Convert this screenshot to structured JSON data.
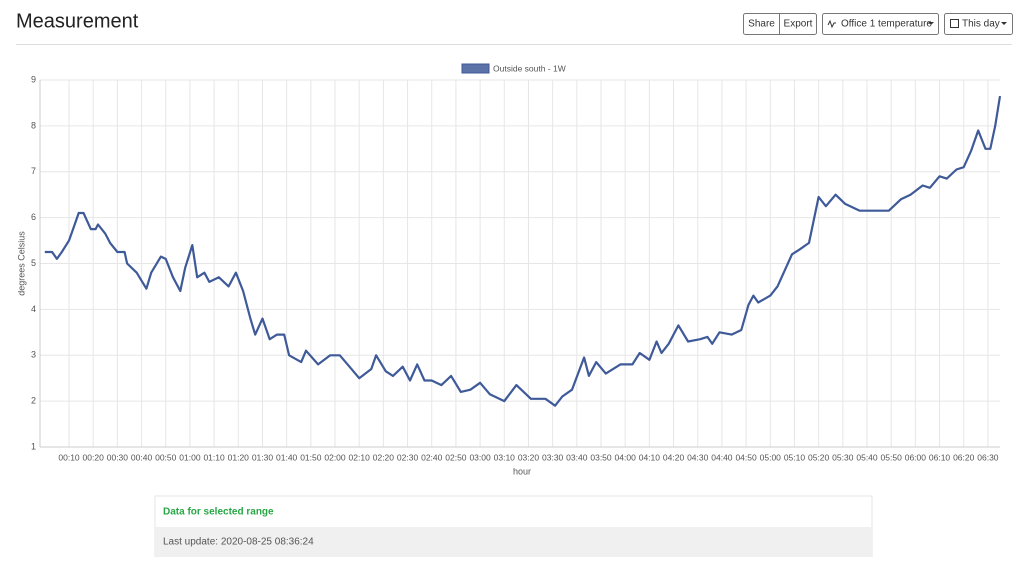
{
  "header": {
    "title": "Measurement",
    "buttons": [
      "Share",
      "Export",
      "Office 1 temperature",
      "This day"
    ]
  },
  "chart_data": {
    "type": "line",
    "legend": "top",
    "grid": true,
    "xlabel": "hour",
    "ylabel": "degrees Celsius",
    "ylim": [
      1,
      9
    ],
    "yticks": [
      1,
      2,
      3,
      4,
      5,
      6,
      7,
      8,
      9
    ],
    "xlim": [
      -2,
      395
    ],
    "xticks": [
      {
        "value": 10,
        "label": "00:10"
      },
      {
        "value": 20,
        "label": "00:20"
      },
      {
        "value": 30,
        "label": "00:30"
      },
      {
        "value": 40,
        "label": "00:40"
      },
      {
        "value": 50,
        "label": "00:50"
      },
      {
        "value": 60,
        "label": "01:00"
      },
      {
        "value": 70,
        "label": "01:10"
      },
      {
        "value": 80,
        "label": "01:20"
      },
      {
        "value": 90,
        "label": "01:30"
      },
      {
        "value": 100,
        "label": "01:40"
      },
      {
        "value": 110,
        "label": "01:50"
      },
      {
        "value": 120,
        "label": "02:00"
      },
      {
        "value": 130,
        "label": "02:10"
      },
      {
        "value": 140,
        "label": "02:20"
      },
      {
        "value": 150,
        "label": "02:30"
      },
      {
        "value": 160,
        "label": "02:40"
      },
      {
        "value": 170,
        "label": "02:50"
      },
      {
        "value": 180,
        "label": "03:00"
      },
      {
        "value": 190,
        "label": "03:10"
      },
      {
        "value": 200,
        "label": "03:20"
      },
      {
        "value": 210,
        "label": "03:30"
      },
      {
        "value": 220,
        "label": "03:40"
      },
      {
        "value": 230,
        "label": "03:50"
      },
      {
        "value": 240,
        "label": "04:00"
      },
      {
        "value": 250,
        "label": "04:10"
      },
      {
        "value": 260,
        "label": "04:20"
      },
      {
        "value": 270,
        "label": "04:30"
      },
      {
        "value": 280,
        "label": "04:40"
      },
      {
        "value": 290,
        "label": "04:50"
      },
      {
        "value": 300,
        "label": "05:00"
      },
      {
        "value": 310,
        "label": "05:10"
      },
      {
        "value": 320,
        "label": "05:20"
      },
      {
        "value": 330,
        "label": "05:30"
      },
      {
        "value": 340,
        "label": "05:40"
      },
      {
        "value": 350,
        "label": "05:50"
      },
      {
        "value": 360,
        "label": "06:00"
      },
      {
        "value": 370,
        "label": "06:10"
      },
      {
        "value": 380,
        "label": "06:20"
      },
      {
        "value": 390,
        "label": "06:30"
      }
    ],
    "x": [
      0,
      3,
      5,
      7,
      10,
      12,
      14,
      16,
      19,
      21,
      22,
      25,
      27,
      30,
      33,
      34,
      38,
      42,
      44,
      48,
      50,
      53,
      56,
      58,
      61,
      63,
      66,
      68,
      72,
      76,
      79,
      82,
      85,
      87,
      90,
      93,
      96,
      99,
      101,
      106,
      108,
      113,
      118,
      122,
      126,
      130,
      135,
      137,
      141,
      144,
      148,
      151,
      154,
      157,
      160,
      164,
      168,
      172,
      176,
      180,
      184,
      190,
      195,
      201,
      207,
      211,
      214,
      218,
      223,
      225,
      228,
      232,
      238,
      243,
      246,
      250,
      253,
      255,
      258,
      262,
      266,
      271,
      274,
      276,
      279,
      284,
      288,
      291,
      293,
      295,
      300,
      303,
      309,
      312,
      316,
      320,
      323,
      327,
      331,
      337,
      344,
      349,
      354,
      358,
      363,
      366,
      370,
      373,
      377,
      380,
      383,
      386,
      389,
      391,
      393,
      395
    ],
    "series": [
      {
        "name": "Outside south - 1W",
        "color": "#3f5a99",
        "values": [
          5.25,
          5.25,
          5.1,
          5.25,
          5.5,
          5.8,
          6.1,
          6.1,
          5.75,
          5.75,
          5.85,
          5.65,
          5.45,
          5.25,
          5.25,
          5.0,
          4.8,
          4.45,
          4.8,
          5.15,
          5.1,
          4.7,
          4.4,
          4.9,
          5.4,
          4.7,
          4.8,
          4.6,
          4.7,
          4.5,
          4.8,
          4.4,
          3.8,
          3.45,
          3.8,
          3.35,
          3.45,
          3.45,
          3.0,
          2.85,
          3.1,
          2.8,
          3.0,
          3.0,
          2.75,
          2.5,
          2.7,
          3.0,
          2.65,
          2.55,
          2.75,
          2.45,
          2.8,
          2.45,
          2.45,
          2.35,
          2.55,
          2.2,
          2.25,
          2.4,
          2.15,
          2.0,
          2.35,
          2.05,
          2.05,
          1.9,
          2.1,
          2.25,
          2.95,
          2.55,
          2.85,
          2.6,
          2.8,
          2.8,
          3.05,
          2.9,
          3.3,
          3.05,
          3.25,
          3.65,
          3.3,
          3.35,
          3.4,
          3.25,
          3.5,
          3.45,
          3.55,
          4.1,
          4.3,
          4.15,
          4.3,
          4.5,
          5.2,
          5.3,
          5.45,
          6.45,
          6.25,
          6.5,
          6.3,
          6.15,
          6.15,
          6.15,
          6.4,
          6.5,
          6.7,
          6.65,
          6.9,
          6.85,
          7.05,
          7.1,
          7.45,
          7.9,
          7.5,
          7.5,
          8.0,
          8.65
        ]
      }
    ]
  },
  "info": {
    "heading": "Data for selected range",
    "last_update": "Last update: 2020-08-25 08:36:24"
  }
}
